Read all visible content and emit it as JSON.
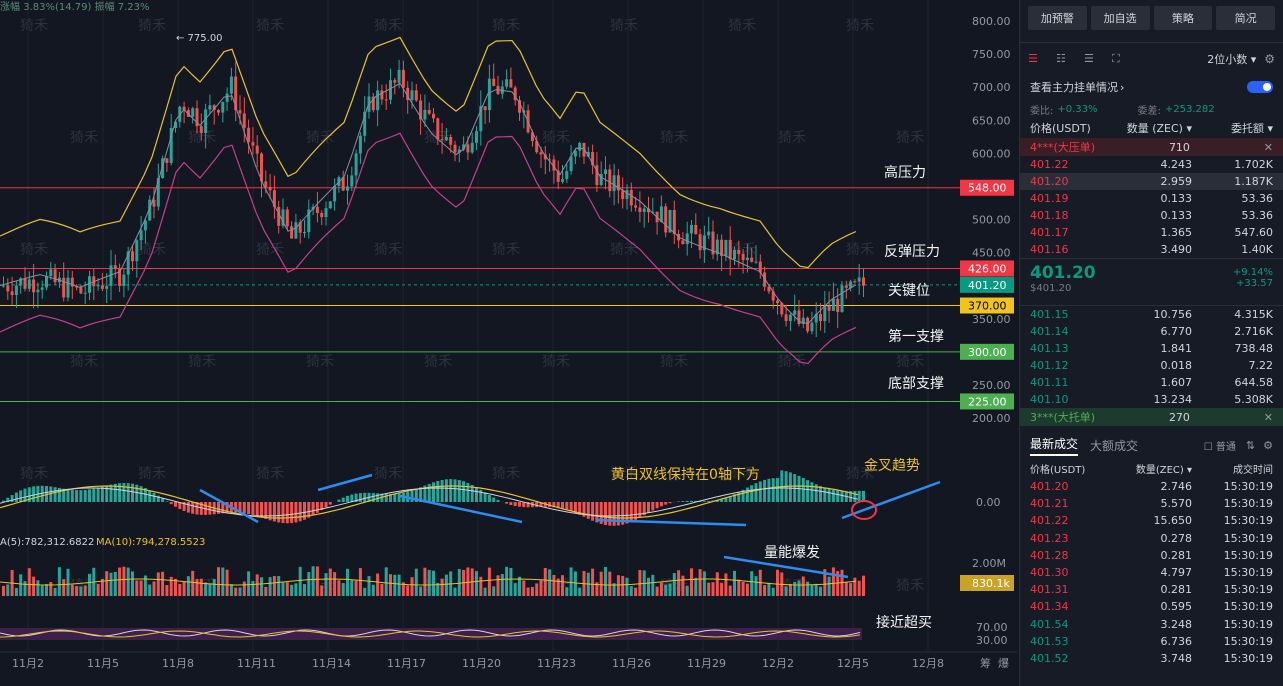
{
  "header": {
    "change_label": "涨幅",
    "change_value": "3.83%(14.79)",
    "amplitude_label": "振幅",
    "amplitude_value": "7.23%"
  },
  "price_axis": [
    "800.00",
    "750.00",
    "700.00",
    "650.00",
    "600.00",
    "500.00",
    "450.00",
    "350.00",
    "250.00",
    "200.00"
  ],
  "price_tags": [
    {
      "label": "548.00",
      "color": "#f23645"
    },
    {
      "label": "426.00",
      "color": "#f23645"
    },
    {
      "label": "401.20",
      "color": "#089981"
    },
    {
      "label": "370.00",
      "color": "#f0c419"
    },
    {
      "label": "300.00",
      "color": "#4caf50"
    },
    {
      "label": "225.00",
      "color": "#4caf50"
    }
  ],
  "annotations": {
    "high_resistance": "高压力",
    "rebound_resistance": "反弹压力",
    "key_level": "关键位",
    "first_support": "第一支撑",
    "bottom_support": "底部支撑",
    "macd_note": "黄白双线保持在0轴下方",
    "golden_cross": "金叉趋势",
    "volume_burst": "量能爆发",
    "near_overbought": "接近超买",
    "high_marker": "← 775.00"
  },
  "macd_axis": {
    "zero": "0.00"
  },
  "volume": {
    "ma5_label": "A(5):782,312.6822",
    "ma10_label": "MA(10):794,278.5523",
    "axis_top": "2.00M",
    "tag": "830.1k"
  },
  "rsi_axis": {
    "top": "70.00",
    "bottom": "30.00"
  },
  "x_labels": [
    "11月2",
    "11月5",
    "11月8",
    "11月11",
    "11月14",
    "11月17",
    "11月20",
    "11月23",
    "11月26",
    "11月29",
    "12月2",
    "12月5",
    "12月8"
  ],
  "x_right_icons": [
    "筹",
    "爆"
  ],
  "watermark": "猗禾",
  "right_panel": {
    "buttons": [
      "加预警",
      "加自选",
      "策略",
      "简况"
    ],
    "decimals": "2位小数",
    "main_orders": "查看主力挂单情况",
    "weibi_label": "委比:",
    "weibi_value": "+0.33%",
    "weicha_label": "委差:",
    "weicha_value": "+253.282",
    "ob_headers": [
      "价格(USDT)",
      "数量 (ZEC)",
      "委托额"
    ],
    "big_sell_banner": "4***(大压单)",
    "big_sell_value": "710",
    "asks": [
      {
        "price": "401.22",
        "qty": "4.243",
        "amt": "1.702K"
      },
      {
        "price": "401.20",
        "qty": "2.959",
        "amt": "1.187K"
      },
      {
        "price": "401.19",
        "qty": "0.133",
        "amt": "53.36"
      },
      {
        "price": "401.18",
        "qty": "0.133",
        "amt": "53.36"
      },
      {
        "price": "401.17",
        "qty": "1.365",
        "amt": "547.60"
      },
      {
        "price": "401.16",
        "qty": "3.490",
        "amt": "1.40K"
      }
    ],
    "last_price": "401.20",
    "last_price_usd": "$401.20",
    "last_change_pct": "+9.14%",
    "last_change_abs": "+33.57",
    "bids": [
      {
        "price": "401.15",
        "qty": "10.756",
        "amt": "4.315K"
      },
      {
        "price": "401.14",
        "qty": "6.770",
        "amt": "2.716K"
      },
      {
        "price": "401.13",
        "qty": "1.841",
        "amt": "738.48"
      },
      {
        "price": "401.12",
        "qty": "0.018",
        "amt": "7.22"
      },
      {
        "price": "401.11",
        "qty": "1.607",
        "amt": "644.58"
      },
      {
        "price": "401.10",
        "qty": "13.234",
        "amt": "5.308K"
      }
    ],
    "big_buy_banner": "3***(大托单)",
    "big_buy_value": "270",
    "trade_tabs": [
      "最新成交",
      "大额成交"
    ],
    "normal_label": "普通",
    "trade_headers": [
      "价格(USDT)",
      "数量(ZEC)",
      "成交时间"
    ],
    "trades": [
      {
        "price": "401.20",
        "qty": "2.746",
        "time": "15:30:19",
        "side": "sell"
      },
      {
        "price": "401.21",
        "qty": "5.570",
        "time": "15:30:19",
        "side": "sell"
      },
      {
        "price": "401.22",
        "qty": "15.650",
        "time": "15:30:19",
        "side": "sell"
      },
      {
        "price": "401.23",
        "qty": "0.278",
        "time": "15:30:19",
        "side": "sell"
      },
      {
        "price": "401.28",
        "qty": "0.281",
        "time": "15:30:19",
        "side": "sell"
      },
      {
        "price": "401.30",
        "qty": "4.797",
        "time": "15:30:19",
        "side": "sell"
      },
      {
        "price": "401.31",
        "qty": "0.281",
        "time": "15:30:19",
        "side": "sell"
      },
      {
        "price": "401.34",
        "qty": "0.595",
        "time": "15:30:19",
        "side": "sell"
      },
      {
        "price": "401.54",
        "qty": "3.248",
        "time": "15:30:19",
        "side": "buy"
      },
      {
        "price": "401.53",
        "qty": "6.736",
        "time": "15:30:19",
        "side": "buy"
      },
      {
        "price": "401.52",
        "qty": "3.748",
        "time": "15:30:19",
        "side": "buy"
      }
    ]
  }
}
